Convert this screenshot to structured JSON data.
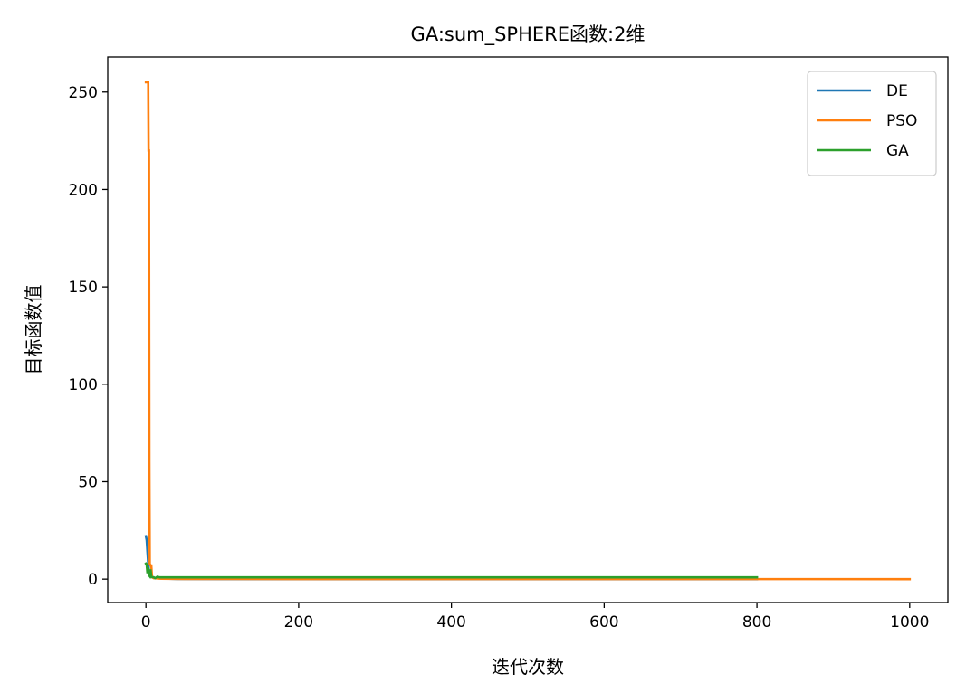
{
  "chart_data": {
    "type": "line",
    "title": "GA:sum_SPHERE函数:2维",
    "xlabel": "迭代次数",
    "ylabel": "目标函数值",
    "xlim": [
      -50,
      1050
    ],
    "ylim": [
      -12,
      268
    ],
    "xticks": [
      0,
      200,
      400,
      600,
      800,
      1000
    ],
    "yticks": [
      0,
      50,
      100,
      150,
      200,
      250
    ],
    "grid": false,
    "legend_position": "top-right",
    "series": [
      {
        "name": "DE",
        "color": "#1f77b4",
        "points": [
          [
            0,
            22
          ],
          [
            1,
            20
          ],
          [
            2,
            14
          ],
          [
            3,
            8
          ],
          [
            4,
            4
          ],
          [
            5,
            2
          ],
          [
            6,
            1.5
          ],
          [
            8,
            1
          ],
          [
            12,
            0.6
          ],
          [
            20,
            0.3
          ],
          [
            40,
            0.1
          ],
          [
            100,
            0.02
          ],
          [
            300,
            0.005
          ],
          [
            800,
            0.001
          ]
        ]
      },
      {
        "name": "PSO",
        "color": "#ff7f0e",
        "points": [
          [
            0,
            255
          ],
          [
            1,
            255
          ],
          [
            2,
            255
          ],
          [
            3,
            255
          ],
          [
            3.5,
            220
          ],
          [
            4,
            220
          ],
          [
            4.5,
            60
          ],
          [
            5,
            8
          ],
          [
            6,
            7
          ],
          [
            7,
            7
          ],
          [
            8,
            1
          ],
          [
            10,
            0.5
          ],
          [
            20,
            0.2
          ],
          [
            50,
            0.1
          ],
          [
            200,
            0.05
          ],
          [
            600,
            0.02
          ],
          [
            1000,
            0.01
          ]
        ]
      },
      {
        "name": "GA",
        "color": "#2ca02c",
        "points": [
          [
            0,
            8
          ],
          [
            1,
            7.5
          ],
          [
            2,
            3
          ],
          [
            3,
            6
          ],
          [
            4,
            2
          ],
          [
            5,
            1.5
          ],
          [
            6,
            5
          ],
          [
            7,
            1.2
          ],
          [
            8,
            1
          ],
          [
            10,
            1
          ],
          [
            12,
            0.5
          ],
          [
            15,
            1.2
          ],
          [
            18,
            0.9
          ],
          [
            20,
            0.9
          ],
          [
            100,
            0.9
          ],
          [
            400,
            0.9
          ],
          [
            800,
            0.9
          ]
        ]
      }
    ]
  }
}
